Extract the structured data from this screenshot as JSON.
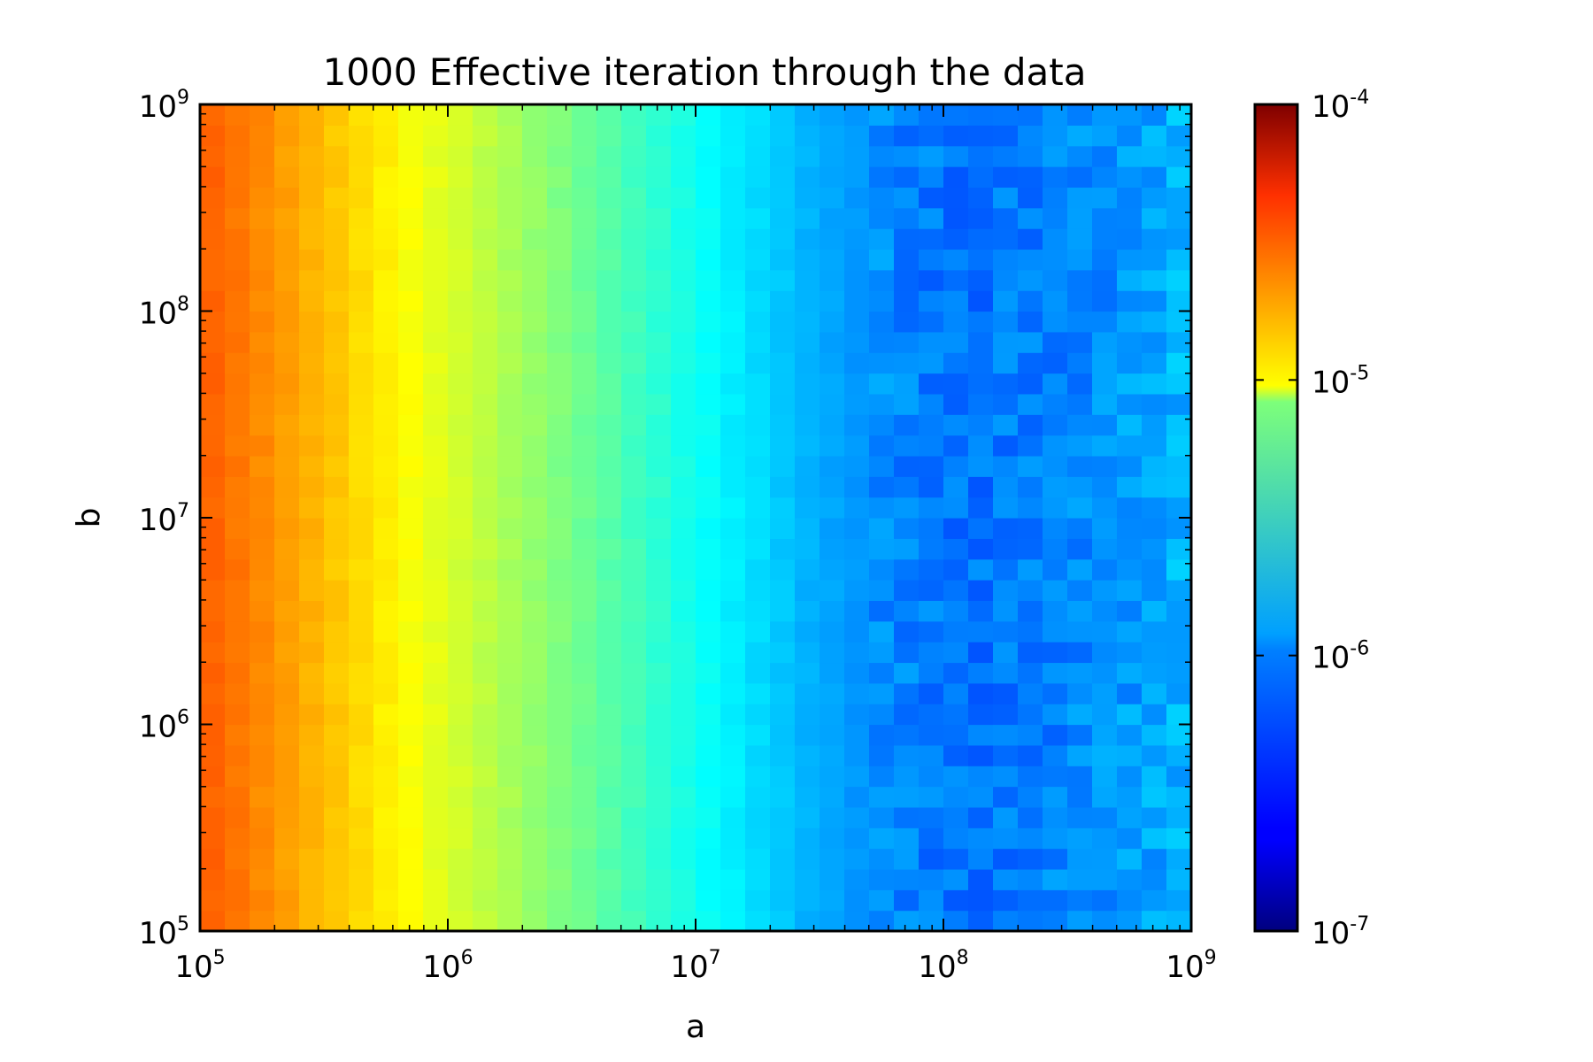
{
  "chart_data": {
    "type": "heatmap",
    "title": "1000 Effective iteration through the data",
    "xlabel": "a",
    "ylabel": "b",
    "xscale": "log",
    "yscale": "log",
    "xlim": [
      100000,
      1000000000
    ],
    "ylim": [
      100000,
      1000000000
    ],
    "x_tick_values": [
      100000,
      1000000,
      10000000,
      100000000,
      1000000000
    ],
    "x_tick_labels": [
      {
        "base": "10",
        "exp": "5"
      },
      {
        "base": "10",
        "exp": "6"
      },
      {
        "base": "10",
        "exp": "7"
      },
      {
        "base": "10",
        "exp": "8"
      },
      {
        "base": "10",
        "exp": "9"
      }
    ],
    "y_tick_values": [
      100000,
      1000000,
      10000000,
      100000000,
      1000000000
    ],
    "y_tick_labels": [
      {
        "base": "10",
        "exp": "5"
      },
      {
        "base": "10",
        "exp": "6"
      },
      {
        "base": "10",
        "exp": "7"
      },
      {
        "base": "10",
        "exp": "8"
      },
      {
        "base": "10",
        "exp": "9"
      }
    ],
    "grid": "none",
    "colormap": "jet",
    "color_scale": "log",
    "color_range": [
      1e-07,
      0.0001
    ],
    "colorbar_tick_values": [
      1e-07,
      1e-06,
      1e-05,
      0.0001
    ],
    "colorbar_tick_labels": [
      {
        "base": "10",
        "exp": "-7"
      },
      {
        "base": "10",
        "exp": "-6"
      },
      {
        "base": "10",
        "exp": "-5"
      },
      {
        "base": "10",
        "exp": "-4"
      }
    ],
    "grid_size": [
      40,
      40
    ],
    "a_column_log_values_estimated": [
      -4.67,
      -4.72,
      -4.78,
      -4.84,
      -4.9,
      -4.96,
      -5.02,
      -5.08,
      -5.14,
      -5.2,
      -5.26,
      -5.32,
      -5.38,
      -5.44,
      -5.5,
      -5.56,
      -5.62,
      -5.68,
      -5.74,
      -5.8,
      -5.86,
      -5.92,
      -5.98,
      -6.04,
      -6.1,
      -6.14,
      -6.18,
      -6.21,
      -6.24,
      -6.26,
      -6.28,
      -6.28,
      -6.27,
      -6.26,
      -6.24,
      -6.22,
      -6.2,
      -6.17,
      -6.14,
      -6.1
    ],
    "note_values": "cell value ≈ 10^(column value); b has little effect"
  }
}
